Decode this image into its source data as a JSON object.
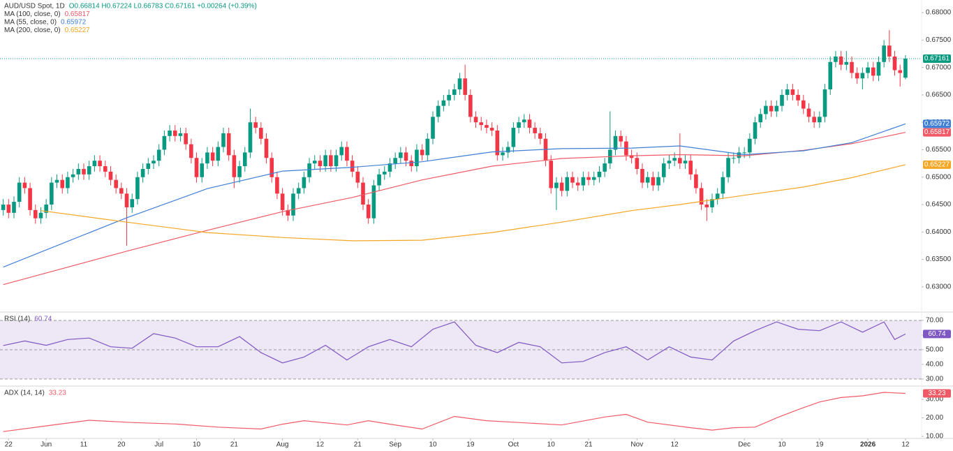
{
  "chart_data": [
    {
      "type": "candlestick",
      "title": "AUD/USD Spot, 1D",
      "ohlc_text": "O0.66814 H0.67224 L0.66783 C0.67161 +0.00264 (+0.39%)",
      "up_color": "#089981",
      "down_color": "#f23645",
      "xlim": [
        -0.6,
        171
      ],
      "ylim": [
        0.6254,
        0.6823
      ],
      "xticks": [
        {
          "value": 1,
          "label": "22"
        },
        {
          "value": 8,
          "label": "Jun"
        },
        {
          "value": 15,
          "label": "11"
        },
        {
          "value": 22,
          "label": "20"
        },
        {
          "value": 29,
          "label": "Jul"
        },
        {
          "value": 36,
          "label": "10"
        },
        {
          "value": 43,
          "label": "21"
        },
        {
          "value": 52,
          "label": "Aug"
        },
        {
          "value": 59,
          "label": "12"
        },
        {
          "value": 66,
          "label": "21"
        },
        {
          "value": 73,
          "label": "Sep"
        },
        {
          "value": 80,
          "label": "10"
        },
        {
          "value": 87,
          "label": "19"
        },
        {
          "value": 95,
          "label": "Oct"
        },
        {
          "value": 102,
          "label": "10"
        },
        {
          "value": 109,
          "label": "21"
        },
        {
          "value": 118,
          "label": "Nov"
        },
        {
          "value": 125,
          "label": "12"
        },
        {
          "value": 138,
          "label": "Dec"
        },
        {
          "value": 145,
          "label": "10"
        },
        {
          "value": 152,
          "label": "19"
        },
        {
          "value": 161,
          "label": "2026"
        },
        {
          "value": 168,
          "label": "12"
        }
      ],
      "yticks": [
        {
          "value": 0.63,
          "label": "0.63000"
        },
        {
          "value": 0.635,
          "label": "0.63500"
        },
        {
          "value": 0.64,
          "label": "0.64000"
        },
        {
          "value": 0.645,
          "label": "0.64500"
        },
        {
          "value": 0.65,
          "label": "0.65000"
        },
        {
          "value": 0.655,
          "label": "0.65500"
        },
        {
          "value": 0.66,
          "label": "0.66000"
        },
        {
          "value": 0.665,
          "label": "0.66500"
        },
        {
          "value": 0.67,
          "label": "0.67000"
        },
        {
          "value": 0.675,
          "label": "0.67500"
        },
        {
          "value": 0.68,
          "label": "0.68000"
        }
      ],
      "open": [
        0.644,
        0.645,
        0.6435,
        0.6455,
        0.649,
        0.648,
        0.644,
        0.6425,
        0.6435,
        0.645,
        0.649,
        0.6495,
        0.648,
        0.65,
        0.6505,
        0.6515,
        0.6505,
        0.652,
        0.653,
        0.652,
        0.651,
        0.6495,
        0.648,
        0.647,
        0.6445,
        0.646,
        0.65,
        0.6515,
        0.6525,
        0.653,
        0.655,
        0.6575,
        0.6585,
        0.6575,
        0.658,
        0.656,
        0.6535,
        0.65,
        0.6525,
        0.6545,
        0.653,
        0.6555,
        0.658,
        0.654,
        0.65,
        0.652,
        0.6545,
        0.66,
        0.659,
        0.657,
        0.6535,
        0.65,
        0.647,
        0.644,
        0.643,
        0.647,
        0.648,
        0.65,
        0.6525,
        0.653,
        0.652,
        0.654,
        0.652,
        0.654,
        0.6555,
        0.653,
        0.651,
        0.649,
        0.645,
        0.6425,
        0.6485,
        0.6505,
        0.651,
        0.6525,
        0.6535,
        0.6545,
        0.653,
        0.652,
        0.655,
        0.654,
        0.657,
        0.661,
        0.663,
        0.664,
        0.665,
        0.666,
        0.668,
        0.665,
        0.661,
        0.66,
        0.6595,
        0.659,
        0.6585,
        0.654,
        0.6545,
        0.6555,
        0.659,
        0.66,
        0.6605,
        0.659,
        0.658,
        0.657,
        0.653,
        0.648,
        0.649,
        0.6475,
        0.65,
        0.649,
        0.6485,
        0.65,
        0.6495,
        0.65,
        0.651,
        0.6525,
        0.655,
        0.6575,
        0.6565,
        0.654,
        0.6535,
        0.6515,
        0.649,
        0.65,
        0.6485,
        0.65,
        0.6525,
        0.653,
        0.6535,
        0.6525,
        0.653,
        0.6505,
        0.648,
        0.645,
        0.6445,
        0.646,
        0.647,
        0.65,
        0.6535,
        0.6535,
        0.6545,
        0.6545,
        0.657,
        0.66,
        0.6615,
        0.663,
        0.662,
        0.663,
        0.665,
        0.666,
        0.665,
        0.664,
        0.6625,
        0.661,
        0.66,
        0.661,
        0.666,
        0.671,
        0.672,
        0.6705,
        0.671,
        0.669,
        0.668,
        0.669,
        0.67,
        0.6685,
        0.671,
        0.674,
        0.672,
        0.6695,
        0.66814
      ],
      "high": [
        0.646,
        0.646,
        0.6465,
        0.65,
        0.65,
        0.649,
        0.645,
        0.6445,
        0.646,
        0.65,
        0.6505,
        0.6505,
        0.651,
        0.6515,
        0.6525,
        0.6525,
        0.653,
        0.654,
        0.654,
        0.653,
        0.652,
        0.6505,
        0.649,
        0.648,
        0.647,
        0.651,
        0.6525,
        0.6535,
        0.654,
        0.656,
        0.6585,
        0.6595,
        0.6595,
        0.659,
        0.659,
        0.657,
        0.6545,
        0.6535,
        0.6555,
        0.6555,
        0.6565,
        0.659,
        0.659,
        0.655,
        0.653,
        0.6555,
        0.6625,
        0.661,
        0.66,
        0.658,
        0.6545,
        0.651,
        0.648,
        0.645,
        0.648,
        0.649,
        0.651,
        0.6535,
        0.654,
        0.654,
        0.655,
        0.655,
        0.655,
        0.6565,
        0.6565,
        0.654,
        0.652,
        0.65,
        0.646,
        0.6495,
        0.6515,
        0.652,
        0.6535,
        0.6545,
        0.6555,
        0.6555,
        0.654,
        0.656,
        0.656,
        0.658,
        0.662,
        0.664,
        0.665,
        0.666,
        0.667,
        0.669,
        0.6705,
        0.666,
        0.662,
        0.661,
        0.6605,
        0.66,
        0.6595,
        0.6555,
        0.6565,
        0.66,
        0.661,
        0.6615,
        0.6615,
        0.66,
        0.659,
        0.658,
        0.654,
        0.65,
        0.65,
        0.651,
        0.651,
        0.65,
        0.651,
        0.651,
        0.651,
        0.652,
        0.6535,
        0.662,
        0.6585,
        0.6585,
        0.6575,
        0.655,
        0.6545,
        0.6525,
        0.651,
        0.651,
        0.651,
        0.6535,
        0.654,
        0.6545,
        0.658,
        0.654,
        0.654,
        0.6515,
        0.649,
        0.646,
        0.647,
        0.648,
        0.651,
        0.6545,
        0.6545,
        0.6555,
        0.6555,
        0.658,
        0.661,
        0.6625,
        0.664,
        0.664,
        0.664,
        0.666,
        0.667,
        0.667,
        0.666,
        0.665,
        0.6635,
        0.662,
        0.662,
        0.667,
        0.672,
        0.673,
        0.673,
        0.673,
        0.672,
        0.67,
        0.67,
        0.671,
        0.671,
        0.672,
        0.675,
        0.6768,
        0.673,
        0.6705,
        0.67224
      ],
      "low": [
        0.643,
        0.6425,
        0.6425,
        0.6445,
        0.647,
        0.643,
        0.6415,
        0.6415,
        0.6425,
        0.644,
        0.648,
        0.647,
        0.647,
        0.649,
        0.6495,
        0.6495,
        0.6495,
        0.651,
        0.651,
        0.65,
        0.6485,
        0.647,
        0.646,
        0.6375,
        0.6435,
        0.645,
        0.649,
        0.6505,
        0.6515,
        0.652,
        0.654,
        0.6565,
        0.6565,
        0.6565,
        0.655,
        0.6525,
        0.649,
        0.649,
        0.6515,
        0.652,
        0.652,
        0.6545,
        0.653,
        0.648,
        0.649,
        0.651,
        0.6535,
        0.658,
        0.656,
        0.6525,
        0.649,
        0.646,
        0.643,
        0.642,
        0.642,
        0.646,
        0.647,
        0.649,
        0.6515,
        0.651,
        0.651,
        0.651,
        0.651,
        0.653,
        0.652,
        0.65,
        0.648,
        0.644,
        0.6415,
        0.6415,
        0.6475,
        0.6495,
        0.65,
        0.6515,
        0.6525,
        0.652,
        0.651,
        0.651,
        0.653,
        0.653,
        0.656,
        0.66,
        0.662,
        0.663,
        0.664,
        0.665,
        0.664,
        0.66,
        0.659,
        0.6585,
        0.658,
        0.6575,
        0.653,
        0.653,
        0.6535,
        0.6545,
        0.658,
        0.659,
        0.658,
        0.657,
        0.656,
        0.652,
        0.647,
        0.644,
        0.6465,
        0.6465,
        0.648,
        0.6475,
        0.6475,
        0.6485,
        0.6485,
        0.649,
        0.65,
        0.6515,
        0.654,
        0.6555,
        0.653,
        0.6525,
        0.6505,
        0.648,
        0.648,
        0.6475,
        0.6475,
        0.649,
        0.6515,
        0.652,
        0.6515,
        0.6515,
        0.6495,
        0.647,
        0.644,
        0.642,
        0.6435,
        0.645,
        0.646,
        0.649,
        0.6525,
        0.6525,
        0.6535,
        0.6535,
        0.656,
        0.659,
        0.6605,
        0.661,
        0.661,
        0.662,
        0.664,
        0.664,
        0.663,
        0.6615,
        0.66,
        0.659,
        0.659,
        0.66,
        0.665,
        0.67,
        0.6695,
        0.6695,
        0.668,
        0.667,
        0.666,
        0.668,
        0.6675,
        0.6675,
        0.67,
        0.671,
        0.6685,
        0.6665,
        0.66783
      ],
      "close": [
        0.645,
        0.6435,
        0.6455,
        0.649,
        0.648,
        0.644,
        0.6425,
        0.6435,
        0.645,
        0.649,
        0.6495,
        0.648,
        0.65,
        0.6505,
        0.6515,
        0.6505,
        0.652,
        0.653,
        0.652,
        0.651,
        0.6495,
        0.648,
        0.647,
        0.6445,
        0.646,
        0.65,
        0.6515,
        0.6525,
        0.653,
        0.655,
        0.6575,
        0.6585,
        0.6575,
        0.658,
        0.656,
        0.6535,
        0.65,
        0.6525,
        0.6545,
        0.653,
        0.6555,
        0.658,
        0.654,
        0.65,
        0.652,
        0.6545,
        0.66,
        0.659,
        0.657,
        0.6535,
        0.65,
        0.647,
        0.644,
        0.643,
        0.647,
        0.648,
        0.65,
        0.6525,
        0.653,
        0.652,
        0.654,
        0.652,
        0.654,
        0.6555,
        0.653,
        0.651,
        0.649,
        0.645,
        0.6425,
        0.6485,
        0.6505,
        0.651,
        0.6525,
        0.6535,
        0.6545,
        0.653,
        0.652,
        0.655,
        0.654,
        0.657,
        0.661,
        0.663,
        0.664,
        0.665,
        0.666,
        0.668,
        0.665,
        0.661,
        0.66,
        0.6595,
        0.659,
        0.6585,
        0.654,
        0.6545,
        0.6555,
        0.659,
        0.66,
        0.6605,
        0.659,
        0.658,
        0.657,
        0.653,
        0.648,
        0.649,
        0.6475,
        0.65,
        0.649,
        0.6485,
        0.65,
        0.6495,
        0.65,
        0.651,
        0.6525,
        0.655,
        0.6575,
        0.6565,
        0.654,
        0.6535,
        0.6515,
        0.649,
        0.65,
        0.6485,
        0.65,
        0.6525,
        0.653,
        0.6535,
        0.6525,
        0.653,
        0.6505,
        0.648,
        0.645,
        0.6445,
        0.646,
        0.647,
        0.65,
        0.6535,
        0.6535,
        0.6545,
        0.6545,
        0.657,
        0.66,
        0.6615,
        0.663,
        0.662,
        0.663,
        0.665,
        0.666,
        0.665,
        0.664,
        0.6625,
        0.661,
        0.66,
        0.661,
        0.666,
        0.671,
        0.672,
        0.6705,
        0.671,
        0.669,
        0.668,
        0.669,
        0.67,
        0.6685,
        0.671,
        0.674,
        0.672,
        0.6695,
        0.669,
        0.67161
      ],
      "series": [
        {
          "name": "MA (100, close, 0)",
          "color": "#f05a66",
          "x": [
            0,
            23,
            38,
            52,
            65,
            78,
            91,
            104,
            117,
            126,
            138,
            149,
            158,
            168
          ],
          "values": [
            0.6304,
            0.6365,
            0.6403,
            0.6437,
            0.6463,
            0.6495,
            0.652,
            0.6534,
            0.6539,
            0.6541,
            0.6539,
            0.6549,
            0.6561,
            0.65817
          ]
        },
        {
          "name": "MA (55, close, 0)",
          "color": "#3f7fd6",
          "x": [
            0,
            23,
            38,
            52,
            65,
            78,
            91,
            104,
            117,
            126,
            138,
            149,
            158,
            168
          ],
          "values": [
            0.6336,
            0.6426,
            0.6479,
            0.6511,
            0.6518,
            0.6528,
            0.6546,
            0.6552,
            0.6553,
            0.6557,
            0.6541,
            0.6548,
            0.6563,
            0.65972
          ]
        },
        {
          "name": "MA (200, close, 0)",
          "color": "#f5a623",
          "x": [
            7,
            23,
            38,
            52,
            65,
            78,
            91,
            104,
            117,
            126,
            138,
            149,
            158,
            168
          ],
          "values": [
            0.6439,
            0.6418,
            0.6399,
            0.639,
            0.6384,
            0.6385,
            0.6399,
            0.6418,
            0.6439,
            0.645,
            0.6467,
            0.6482,
            0.6499,
            0.65227
          ]
        }
      ]
    },
    {
      "type": "line",
      "ylim": [
        25.2,
        75.7
      ],
      "band_color": "#ede7f6",
      "yticks": [
        {
          "value": 30,
          "label": "30.00"
        },
        {
          "value": 40,
          "label": "40.00"
        },
        {
          "value": 50,
          "label": "50.00"
        },
        {
          "value": 60,
          "label": "60.00"
        },
        {
          "value": 70,
          "label": "70.00"
        }
      ],
      "series": [
        {
          "name": "RSI (14)",
          "color": "#7e57c2",
          "x": [
            0,
            4,
            8,
            12,
            16,
            20,
            24,
            28,
            32,
            36,
            40,
            44,
            48,
            52,
            56,
            60,
            64,
            68,
            72,
            76,
            80,
            84,
            88,
            92,
            96,
            100,
            104,
            108,
            112,
            116,
            120,
            124,
            128,
            132,
            136,
            140,
            144,
            148,
            152,
            156,
            160,
            164,
            166,
            168
          ],
          "values": [
            52.9,
            56,
            53,
            57,
            58,
            52,
            51,
            61,
            58,
            52,
            52,
            59,
            48,
            41,
            45,
            53,
            43,
            52,
            57,
            52,
            64,
            69,
            53,
            48,
            55,
            52,
            41,
            42,
            48,
            52,
            43,
            52,
            45,
            43,
            56,
            63,
            69,
            64,
            63,
            69,
            62,
            69,
            57,
            60.74
          ]
        }
      ]
    },
    {
      "type": "line",
      "ylim": [
        8.9,
        37.2
      ],
      "yticks": [
        {
          "value": 10,
          "label": "10.00"
        },
        {
          "value": 20,
          "label": "20.00"
        },
        {
          "value": 30,
          "label": "30.00"
        }
      ],
      "series": [
        {
          "name": "ADX (14, 14)",
          "color": "#f05a66",
          "x": [
            0,
            8,
            16,
            24,
            32,
            40,
            48,
            52,
            56,
            64,
            68,
            72,
            78,
            84,
            90,
            96,
            104,
            112,
            116,
            120,
            128,
            132,
            136,
            140,
            144,
            148,
            152,
            156,
            160,
            164,
            168
          ],
          "values": [
            12.6,
            15.7,
            18.7,
            17.5,
            16.7,
            15,
            14,
            16.6,
            18.5,
            16.2,
            18.5,
            16.6,
            14,
            20.8,
            18.5,
            17.5,
            16.2,
            20.5,
            21.9,
            17.7,
            14.7,
            13.4,
            14.7,
            15,
            20,
            24.5,
            28.6,
            31,
            31.9,
            33.8,
            33.23
          ]
        }
      ]
    }
  ]
}
